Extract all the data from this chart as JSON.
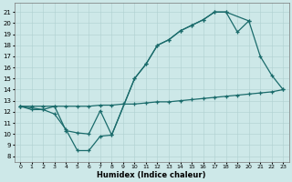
{
  "xlabel": "Humidex (Indice chaleur)",
  "bg_color": "#cde8e8",
  "grid_color": "#afd0d0",
  "line_color": "#1a6b6b",
  "xlim": [
    -0.5,
    23.5
  ],
  "ylim": [
    7.5,
    21.8
  ],
  "xticks": [
    0,
    1,
    2,
    3,
    4,
    5,
    6,
    7,
    8,
    9,
    10,
    11,
    12,
    13,
    14,
    15,
    16,
    17,
    18,
    19,
    20,
    21,
    22,
    23
  ],
  "yticks": [
    8,
    9,
    10,
    11,
    12,
    13,
    14,
    15,
    16,
    17,
    18,
    19,
    20,
    21
  ],
  "line1_x": [
    0,
    1,
    2,
    3,
    4,
    5,
    6,
    7,
    8,
    10,
    11,
    12,
    13,
    14,
    15,
    16,
    17,
    18,
    20
  ],
  "line1_y": [
    12.5,
    12.2,
    12.2,
    12.5,
    10.3,
    10.1,
    10.0,
    12.1,
    9.9,
    15.0,
    16.3,
    18.0,
    18.5,
    19.3,
    19.8,
    20.3,
    21.0,
    21.0,
    20.2
  ],
  "line2_x": [
    0,
    1,
    2,
    3,
    4,
    5,
    6,
    7,
    8,
    9,
    10,
    11,
    12,
    13,
    14,
    15,
    16,
    17,
    18,
    19,
    20,
    21,
    22,
    23
  ],
  "line2_y": [
    12.5,
    12.5,
    12.5,
    12.5,
    12.5,
    12.5,
    12.5,
    12.6,
    12.6,
    12.7,
    12.7,
    12.8,
    12.9,
    12.9,
    13.0,
    13.1,
    13.2,
    13.3,
    13.4,
    13.5,
    13.6,
    13.7,
    13.8,
    14.0
  ],
  "line3_x": [
    0,
    2,
    3,
    4,
    5,
    6,
    7,
    8,
    10,
    11,
    12,
    13,
    14,
    15,
    16,
    17,
    18,
    19,
    20,
    21,
    22,
    23
  ],
  "line3_y": [
    12.5,
    12.2,
    11.8,
    10.4,
    8.5,
    8.5,
    9.8,
    9.9,
    15.0,
    16.3,
    18.0,
    18.5,
    19.3,
    19.8,
    20.3,
    21.0,
    21.0,
    19.2,
    20.2,
    17.0,
    15.3,
    14.0
  ]
}
